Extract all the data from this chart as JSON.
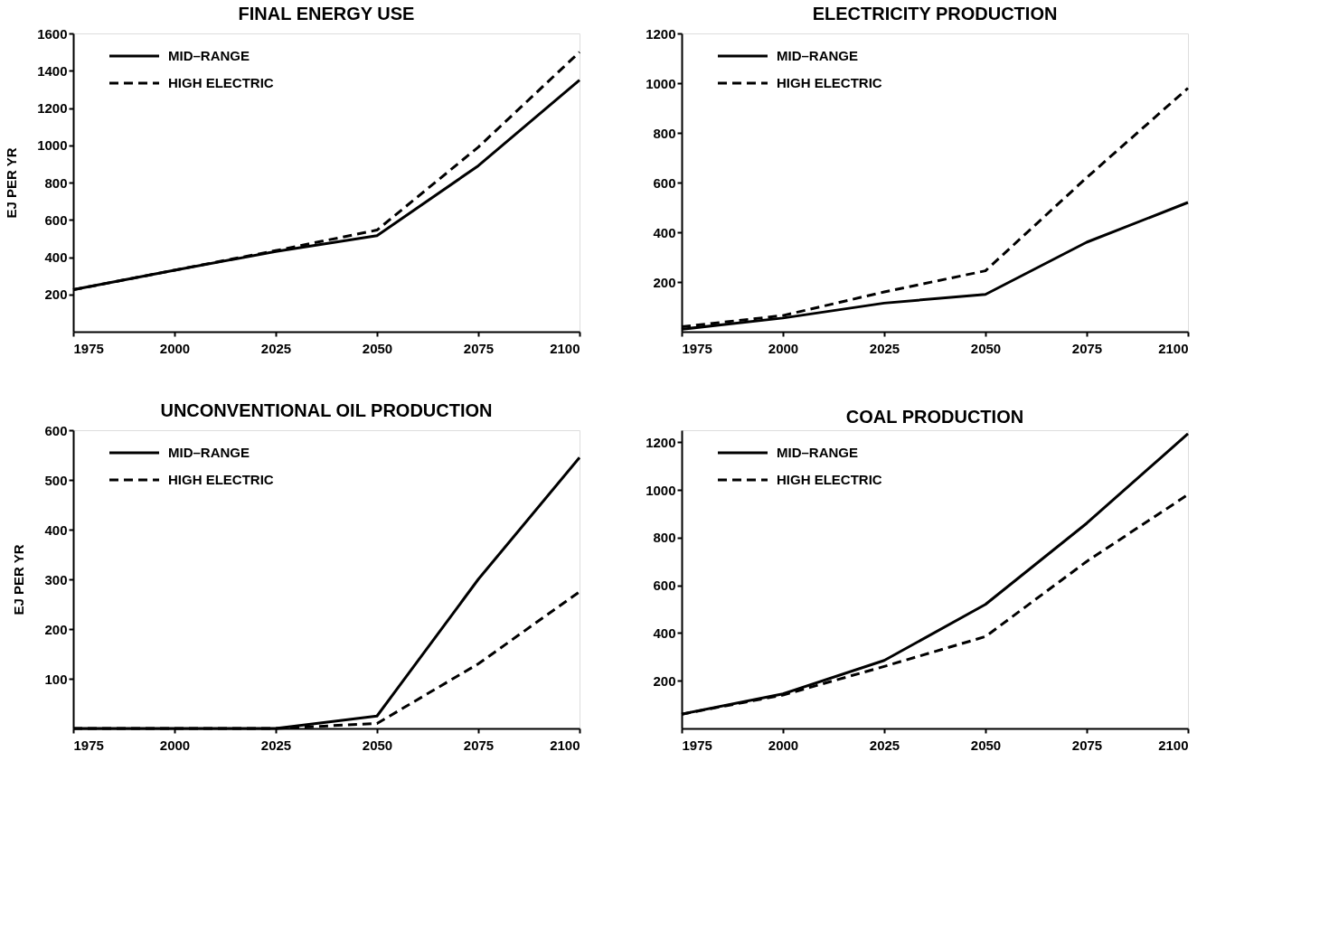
{
  "chart_data": [
    {
      "type": "line",
      "title": "FINAL ENERGY USE",
      "ylabel": "EJ PER YR",
      "x": [
        1975,
        2000,
        2025,
        2050,
        2075,
        2100
      ],
      "xlim": [
        1975,
        2100
      ],
      "xticks": [
        1975,
        2000,
        2025,
        2050,
        2075,
        2100
      ],
      "ylim": [
        0,
        1600
      ],
      "yticks": [
        200,
        400,
        600,
        800,
        1000,
        1200,
        1400,
        1600
      ],
      "legend": "top left",
      "series": [
        {
          "name": "MID–RANGE",
          "color": "#000000",
          "line_style": "solid",
          "values": [
            225,
            330,
            430,
            515,
            890,
            1350
          ]
        },
        {
          "name": "HIGH ELECTRIC",
          "color": "#000000",
          "line_style": "dashed",
          "values": [
            225,
            330,
            435,
            545,
            990,
            1500
          ]
        }
      ]
    },
    {
      "type": "line",
      "title": "ELECTRICITY PRODUCTION",
      "x": [
        1975,
        2000,
        2025,
        2050,
        2075,
        2100
      ],
      "xlim": [
        1975,
        2100
      ],
      "xticks": [
        1975,
        2000,
        2025,
        2050,
        2075,
        2100
      ],
      "ylim": [
        0,
        1200
      ],
      "yticks": [
        200,
        400,
        600,
        800,
        1000,
        1200
      ],
      "legend": "top left",
      "series": [
        {
          "name": "MID–RANGE",
          "color": "#000000",
          "line_style": "solid",
          "values": [
            10,
            55,
            115,
            150,
            360,
            520
          ]
        },
        {
          "name": "HIGH ELECTRIC",
          "color": "#000000",
          "line_style": "dashed",
          "values": [
            20,
            65,
            160,
            245,
            620,
            980
          ]
        }
      ]
    },
    {
      "type": "line",
      "title": "UNCONVENTIONAL OIL PRODUCTION",
      "ylabel": "EJ PER YR",
      "x": [
        1975,
        2000,
        2025,
        2050,
        2075,
        2100
      ],
      "xlim": [
        1975,
        2100
      ],
      "xticks": [
        1975,
        2000,
        2025,
        2050,
        2075,
        2100
      ],
      "ylim": [
        0,
        600
      ],
      "yticks": [
        100,
        200,
        300,
        400,
        500,
        600
      ],
      "legend": "top left",
      "series": [
        {
          "name": "MID–RANGE",
          "color": "#000000",
          "line_style": "solid",
          "values": [
            0,
            0,
            0,
            25,
            300,
            545
          ]
        },
        {
          "name": "HIGH ELECTRIC",
          "color": "#000000",
          "line_style": "dashed",
          "values": [
            0,
            0,
            0,
            10,
            130,
            275
          ]
        }
      ]
    },
    {
      "type": "line",
      "title": "COAL PRODUCTION",
      "x": [
        1975,
        2000,
        2025,
        2050,
        2075,
        2100
      ],
      "xlim": [
        1975,
        2100
      ],
      "xticks": [
        1975,
        2000,
        2025,
        2050,
        2075,
        2100
      ],
      "ylim": [
        0,
        1250
      ],
      "yticks": [
        200,
        400,
        600,
        800,
        1000,
        1200
      ],
      "legend": "top left",
      "series": [
        {
          "name": "MID–RANGE",
          "color": "#000000",
          "line_style": "solid",
          "values": [
            60,
            145,
            285,
            520,
            860,
            1235
          ]
        },
        {
          "name": "HIGH ELECTRIC",
          "color": "#000000",
          "line_style": "dashed",
          "values": [
            60,
            140,
            260,
            385,
            700,
            980
          ]
        }
      ]
    }
  ]
}
